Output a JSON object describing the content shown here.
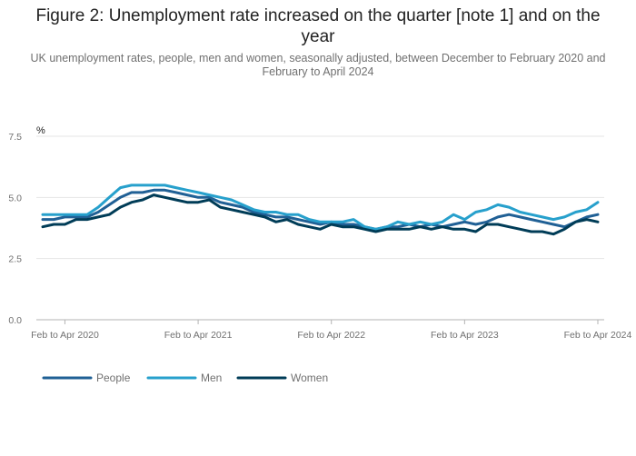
{
  "chart_data": {
    "type": "line",
    "title": "Figure 2: Unemployment rate increased on the quarter [note 1] and on the year",
    "subtitle": "UK unemployment rates, people, men and women, seasonally adjusted, between December to February 2020 and February to April 2024",
    "ylabel": "%",
    "xlabel": "",
    "ylim": [
      0,
      7.5
    ],
    "yticks": [
      "0.0",
      "2.5",
      "5.0",
      "7.5"
    ],
    "yticks_values": [
      0,
      2.5,
      5.0,
      7.5
    ],
    "xtick_labels": [
      "Feb to Apr 2020",
      "Feb to Apr 2021",
      "Feb to Apr 2022",
      "Feb to Apr 2023",
      "Feb to Apr 2024"
    ],
    "xtick_indices": [
      2,
      14,
      26,
      38,
      50
    ],
    "x_count": 51,
    "grid": true,
    "legend_position": "bottom-left",
    "series": [
      {
        "name": "People",
        "color": "#206095",
        "values": [
          4.1,
          4.1,
          4.2,
          4.2,
          4.2,
          4.4,
          4.7,
          5.0,
          5.2,
          5.2,
          5.3,
          5.3,
          5.2,
          5.1,
          5.0,
          5.0,
          4.8,
          4.7,
          4.6,
          4.4,
          4.3,
          4.2,
          4.2,
          4.1,
          4.0,
          3.9,
          4.0,
          3.9,
          3.9,
          3.8,
          3.7,
          3.8,
          3.8,
          3.9,
          3.8,
          3.9,
          3.8,
          3.9,
          4.0,
          3.9,
          4.0,
          4.2,
          4.3,
          4.2,
          4.1,
          4.0,
          3.9,
          3.8,
          4.0,
          4.2,
          4.3
        ]
      },
      {
        "name": "Men",
        "color": "#27a0cc",
        "values": [
          4.3,
          4.3,
          4.3,
          4.3,
          4.3,
          4.6,
          5.0,
          5.4,
          5.5,
          5.5,
          5.5,
          5.5,
          5.4,
          5.3,
          5.2,
          5.1,
          5.0,
          4.9,
          4.7,
          4.5,
          4.4,
          4.4,
          4.3,
          4.3,
          4.1,
          4.0,
          4.0,
          4.0,
          4.1,
          3.8,
          3.7,
          3.8,
          4.0,
          3.9,
          4.0,
          3.9,
          4.0,
          4.3,
          4.1,
          4.4,
          4.5,
          4.7,
          4.6,
          4.4,
          4.3,
          4.2,
          4.1,
          4.2,
          4.4,
          4.5,
          4.8
        ]
      },
      {
        "name": "Women",
        "color": "#003c57",
        "values": [
          3.8,
          3.9,
          3.9,
          4.1,
          4.1,
          4.2,
          4.3,
          4.6,
          4.8,
          4.9,
          5.1,
          5.0,
          4.9,
          4.8,
          4.8,
          4.9,
          4.6,
          4.5,
          4.4,
          4.3,
          4.2,
          4.0,
          4.1,
          3.9,
          3.8,
          3.7,
          3.9,
          3.8,
          3.8,
          3.7,
          3.6,
          3.7,
          3.7,
          3.7,
          3.8,
          3.7,
          3.8,
          3.7,
          3.7,
          3.6,
          3.9,
          3.9,
          3.8,
          3.7,
          3.6,
          3.6,
          3.5,
          3.7,
          4.0,
          4.1,
          4.0
        ]
      }
    ]
  }
}
